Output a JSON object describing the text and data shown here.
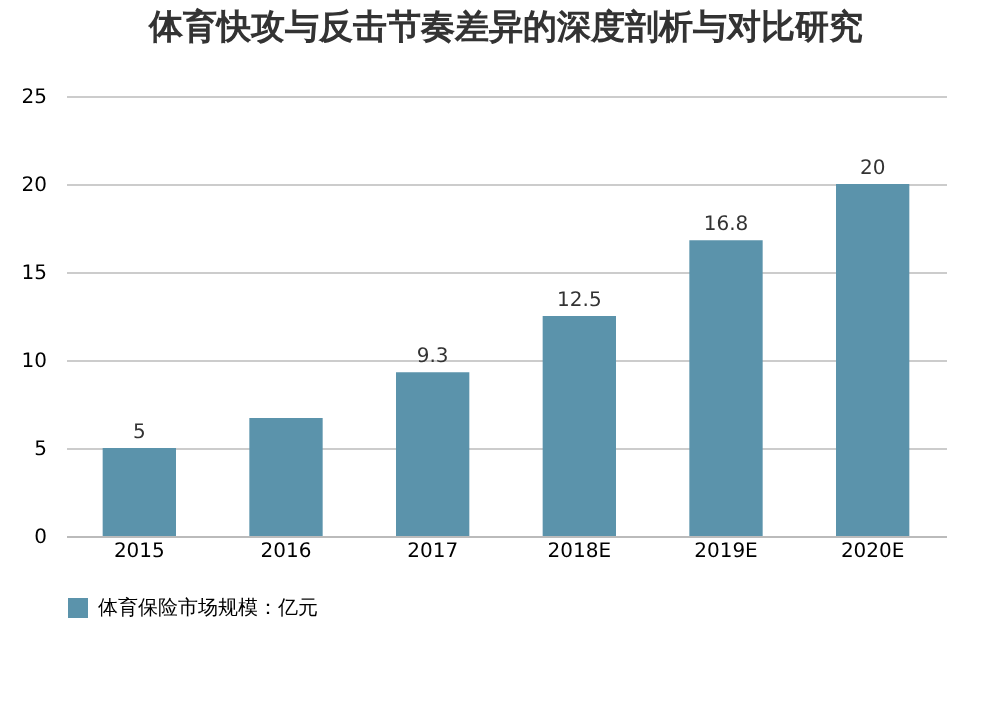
{
  "chart_data": {
    "type": "bar",
    "title": "体育快攻与反击节奏差异的深度剖析与对比研究",
    "categories": [
      "2015",
      "2016",
      "2017",
      "2018E",
      "2019E",
      "2020E"
    ],
    "series": [
      {
        "name": "体育保险市场规模：亿元",
        "color": "#5b93ab",
        "values": [
          5,
          6.7,
          9.3,
          12.5,
          16.8,
          20
        ],
        "value_labels": [
          "5",
          null,
          "9.3",
          "12.5",
          "16.8",
          "20"
        ]
      }
    ],
    "ylim": [
      0,
      25
    ],
    "yticks": [
      0,
      5,
      10,
      15,
      20,
      25
    ],
    "grid": "y",
    "legend": "bottom"
  }
}
